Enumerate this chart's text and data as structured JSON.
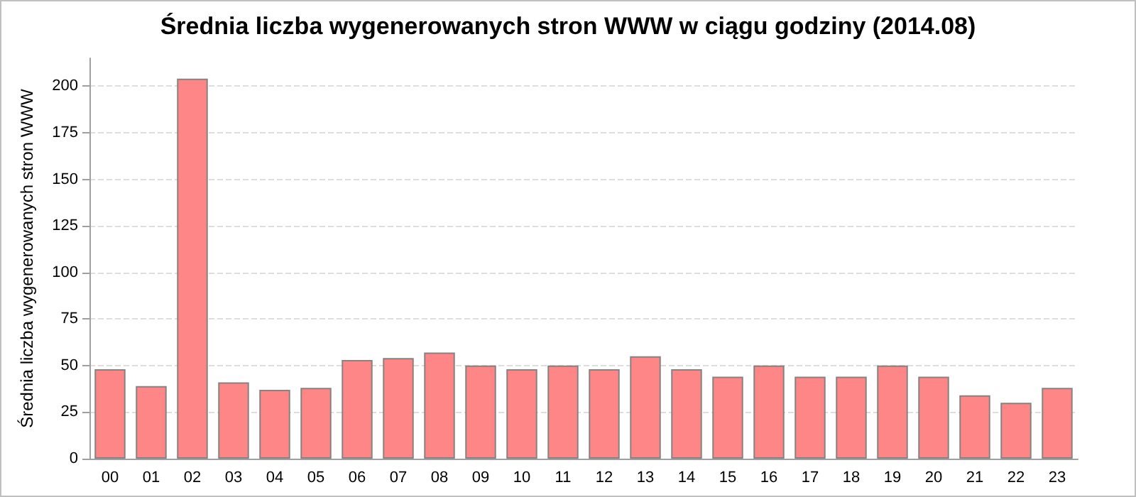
{
  "chart_data": {
    "type": "bar",
    "title": "Średnia liczba wygenerowanych stron WWW w ciągu godziny (2014.08)",
    "ylabel": "Średnia liczba wygenerowanych stron WWW",
    "categories": [
      "00",
      "01",
      "02",
      "03",
      "04",
      "05",
      "06",
      "07",
      "08",
      "09",
      "10",
      "11",
      "12",
      "13",
      "14",
      "15",
      "16",
      "17",
      "18",
      "19",
      "20",
      "21",
      "22",
      "23"
    ],
    "series": [
      {
        "color": "#ff7f7f",
        "values": [
          48,
          39,
          204,
          41,
          37,
          38,
          53,
          54,
          57,
          50,
          48,
          50,
          48,
          55,
          48,
          44,
          50,
          44,
          44,
          50,
          44,
          34,
          30,
          38
        ]
      }
    ],
    "ylim": [
      0,
      215
    ],
    "yticks": [
      0,
      25,
      50,
      75,
      100,
      125,
      150,
      175,
      200
    ],
    "grid": "y"
  }
}
